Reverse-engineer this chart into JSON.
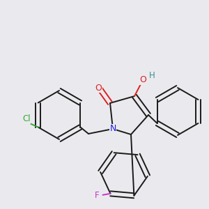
{
  "background_color": "#eaeaee",
  "bond_color": "#1a1a1a",
  "atom_colors": {
    "N": "#2020dd",
    "O": "#dd2020",
    "H": "#3a8f8f",
    "Cl": "#33aa33",
    "F": "#cc33cc"
  },
  "figsize": [
    3.0,
    3.0
  ],
  "dpi": 100
}
